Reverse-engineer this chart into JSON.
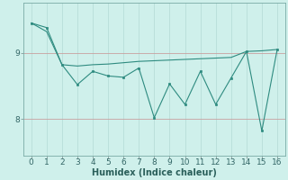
{
  "x": [
    0,
    1,
    2,
    3,
    4,
    5,
    6,
    7,
    8,
    9,
    10,
    11,
    12,
    13,
    14,
    15,
    16
  ],
  "y_jagged": [
    9.45,
    9.38,
    8.82,
    8.52,
    8.72,
    8.65,
    8.63,
    8.77,
    8.02,
    8.53,
    8.22,
    8.72,
    8.22,
    8.62,
    9.02,
    7.82,
    9.05
  ],
  "y_trend": [
    9.45,
    9.32,
    8.82,
    8.8,
    8.82,
    8.83,
    8.85,
    8.87,
    8.88,
    8.89,
    8.9,
    8.91,
    8.92,
    8.93,
    9.02,
    9.03,
    9.05
  ],
  "line_color": "#2e8b80",
  "bg_color": "#cff0eb",
  "grid_color_v": "#b8ddd8",
  "grid_color_h": "#c8a0a0",
  "xlabel": "Humidex (Indice chaleur)",
  "yticks": [
    8,
    9
  ],
  "xticks": [
    0,
    1,
    2,
    3,
    4,
    5,
    6,
    7,
    8,
    9,
    10,
    11,
    12,
    13,
    14,
    15,
    16
  ],
  "ylim": [
    7.45,
    9.75
  ],
  "xlim": [
    -0.5,
    16.5
  ]
}
